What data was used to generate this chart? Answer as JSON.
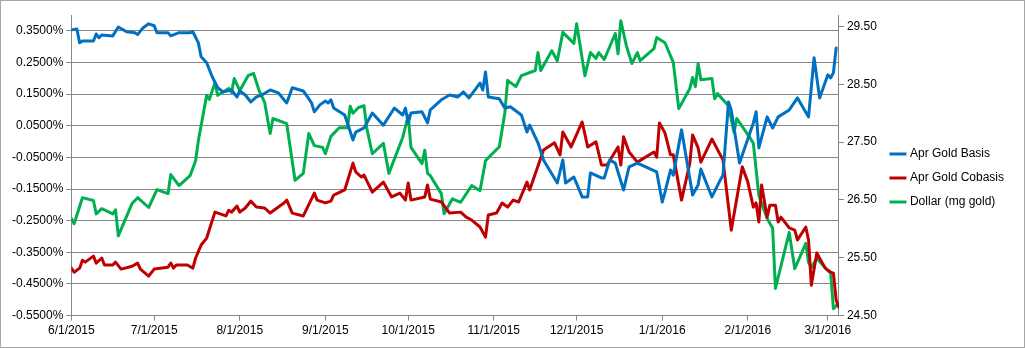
{
  "chart_data": {
    "type": "line",
    "legend": "right",
    "grid": "y",
    "marker": "none",
    "line_style": "solid",
    "xlim": [
      "2015-06-01",
      "2016-03-05"
    ],
    "xticks": [
      {
        "value": "2015-06-01",
        "label": "6/1/2015"
      },
      {
        "value": "2015-07-01",
        "label": "7/1/2015"
      },
      {
        "value": "2015-08-01",
        "label": "8/1/2015"
      },
      {
        "value": "2015-09-01",
        "label": "9/1/2015"
      },
      {
        "value": "2015-10-01",
        "label": "10/1/2015"
      },
      {
        "value": "2015-11-01",
        "label": "11/1/2015"
      },
      {
        "value": "2015-12-01",
        "label": "12/1/2015"
      },
      {
        "value": "2016-01-01",
        "label": "1/1/2016"
      },
      {
        "value": "2016-02-01",
        "label": "2/1/2016"
      },
      {
        "value": "2016-03-01",
        "label": "3/1/2016"
      }
    ],
    "ylim": [
      -0.55,
      0.4
    ],
    "yticks": [
      {
        "value": 0.35,
        "label": "0.3500%"
      },
      {
        "value": 0.25,
        "label": "0.2500%"
      },
      {
        "value": 0.15,
        "label": "0.1500%"
      },
      {
        "value": 0.05,
        "label": "0.0500%"
      },
      {
        "value": -0.05,
        "label": "-0.0500%"
      },
      {
        "value": -0.15,
        "label": "-0.1500%"
      },
      {
        "value": -0.25,
        "label": "-0.2500%"
      },
      {
        "value": -0.35,
        "label": "-0.3500%"
      },
      {
        "value": -0.45,
        "label": "-0.4500%"
      },
      {
        "value": -0.55,
        "label": "-0.5500%"
      }
    ],
    "y2lim": [
      24.5,
      29.7
    ],
    "y2ticks": [
      {
        "value": 24.5,
        "label": "24.50"
      },
      {
        "value": 25.5,
        "label": "25.50"
      },
      {
        "value": 26.5,
        "label": "26.50"
      },
      {
        "value": 27.5,
        "label": "27.50"
      },
      {
        "value": 28.5,
        "label": "28.50"
      },
      {
        "value": 29.5,
        "label": "29.50"
      }
    ],
    "series": [
      {
        "name": "Apr Gold Basis",
        "color": "#0070c0",
        "x": [
          "2015-06-01",
          "2015-06-03",
          "2015-06-04",
          "2015-06-05",
          "2015-06-09",
          "2015-06-10",
          "2015-06-11",
          "2015-06-12",
          "2015-06-16",
          "2015-06-18",
          "2015-06-21",
          "2015-06-24",
          "2015-06-25",
          "2015-06-27",
          "2015-06-29",
          "2015-07-01",
          "2015-07-02",
          "2015-07-06",
          "2015-07-07",
          "2015-07-10",
          "2015-07-14",
          "2015-07-15",
          "2015-07-17",
          "2015-07-18",
          "2015-07-20",
          "2015-07-22",
          "2015-07-24",
          "2015-07-26",
          "2015-07-29",
          "2015-07-31",
          "2015-08-01",
          "2015-08-03",
          "2015-08-05",
          "2015-08-07",
          "2015-08-09",
          "2015-08-12",
          "2015-08-15",
          "2015-08-17",
          "2015-08-18",
          "2015-08-20",
          "2015-08-24",
          "2015-08-27",
          "2015-08-28",
          "2015-08-30",
          "2015-09-01",
          "2015-09-02",
          "2015-09-03",
          "2015-09-04",
          "2015-09-08",
          "2015-09-11",
          "2015-09-12",
          "2015-09-15",
          "2015-09-18",
          "2015-09-22",
          "2015-09-26",
          "2015-09-29",
          "2015-09-30",
          "2015-10-01",
          "2015-10-02",
          "2015-10-06",
          "2015-10-08",
          "2015-10-09",
          "2015-10-13",
          "2015-10-16",
          "2015-10-19",
          "2015-10-21",
          "2015-10-23",
          "2015-10-27",
          "2015-10-28",
          "2015-10-29",
          "2015-10-30",
          "2015-11-03",
          "2015-11-05",
          "2015-11-07",
          "2015-11-11",
          "2015-11-13",
          "2015-11-14",
          "2015-11-17",
          "2015-11-19",
          "2015-11-24",
          "2015-11-26",
          "2015-11-27",
          "2015-11-30",
          "2015-12-03",
          "2015-12-05",
          "2015-12-06",
          "2015-12-10",
          "2015-12-11",
          "2015-12-13",
          "2015-12-15",
          "2015-12-18",
          "2015-12-20",
          "2015-12-23",
          "2015-12-30",
          "2016-01-01",
          "2016-01-02",
          "2016-01-04",
          "2016-01-05",
          "2016-01-08",
          "2016-01-12",
          "2016-01-14",
          "2016-01-15",
          "2016-01-19",
          "2016-01-22",
          "2016-01-23",
          "2016-01-25",
          "2016-01-26",
          "2016-01-29",
          "2016-02-03",
          "2016-02-04",
          "2016-02-05",
          "2016-02-08",
          "2016-02-10",
          "2016-02-12",
          "2016-02-16",
          "2016-02-19",
          "2016-02-23",
          "2016-02-25",
          "2016-02-27",
          "2016-03-01",
          "2016-03-02",
          "2016-03-03",
          "2016-03-04"
        ],
        "values": [
          0.353,
          0.356,
          0.312,
          0.318,
          0.318,
          0.34,
          0.328,
          0.337,
          0.334,
          0.362,
          0.347,
          0.344,
          0.338,
          0.36,
          0.372,
          0.366,
          0.344,
          0.344,
          0.334,
          0.344,
          0.344,
          0.347,
          0.312,
          0.268,
          0.249,
          0.205,
          0.17,
          0.157,
          0.163,
          0.141,
          0.16,
          0.147,
          0.125,
          0.141,
          0.147,
          0.163,
          0.154,
          0.132,
          0.122,
          0.17,
          0.16,
          0.122,
          0.094,
          0.116,
          0.128,
          0.122,
          0.132,
          0.106,
          0.084,
          0.005,
          0.03,
          0.043,
          0.09,
          0.052,
          0.106,
          0.084,
          0.106,
          0.059,
          0.09,
          0.094,
          0.059,
          0.1,
          0.132,
          0.147,
          0.141,
          0.157,
          0.138,
          0.185,
          0.163,
          0.22,
          0.141,
          0.135,
          0.106,
          0.11,
          0.084,
          0.03,
          0.052,
          -0.004,
          -0.058,
          -0.131,
          -0.058,
          -0.131,
          -0.112,
          -0.175,
          -0.175,
          -0.099,
          -0.115,
          -0.115,
          -0.058,
          -0.068,
          -0.153,
          -0.08,
          -0.068,
          -0.096,
          -0.191,
          -0.16,
          -0.09,
          -0.106,
          0.037,
          -0.169,
          -0.137,
          -0.087,
          -0.175,
          -0.122,
          -0.106,
          0.125,
          0.1,
          -0.068,
          0.059,
          0.094,
          -0.02,
          0.078,
          0.043,
          0.078,
          0.1,
          0.138,
          0.078,
          0.265,
          0.138,
          0.211,
          0.201,
          0.217,
          0.296
        ]
      },
      {
        "name": "Apr Gold Cobasis",
        "color": "#c00000",
        "x": [
          "2015-06-01",
          "2015-06-02",
          "2015-06-04",
          "2015-06-05",
          "2015-06-06",
          "2015-06-09",
          "2015-06-10",
          "2015-06-12",
          "2015-06-13",
          "2015-06-16",
          "2015-06-17",
          "2015-06-19",
          "2015-06-23",
          "2015-06-25",
          "2015-06-26",
          "2015-06-29",
          "2015-07-01",
          "2015-07-06",
          "2015-07-07",
          "2015-07-08",
          "2015-07-09",
          "2015-07-13",
          "2015-07-15",
          "2015-07-16",
          "2015-07-18",
          "2015-07-20",
          "2015-07-23",
          "2015-07-27",
          "2015-07-28",
          "2015-07-29",
          "2015-07-31",
          "2015-08-01",
          "2015-08-03",
          "2015-08-05",
          "2015-08-07",
          "2015-08-10",
          "2015-08-12",
          "2015-08-17",
          "2015-08-18",
          "2015-08-20",
          "2015-08-24",
          "2015-08-28",
          "2015-08-29",
          "2015-09-01",
          "2015-09-03",
          "2015-09-04",
          "2015-09-08",
          "2015-09-11",
          "2015-09-12",
          "2015-09-14",
          "2015-09-15",
          "2015-09-18",
          "2015-09-22",
          "2015-09-25",
          "2015-09-28",
          "2015-09-30",
          "2015-10-01",
          "2015-10-02",
          "2015-10-07",
          "2015-10-08",
          "2015-10-09",
          "2015-10-13",
          "2015-10-16",
          "2015-10-20",
          "2015-10-22",
          "2015-10-24",
          "2015-10-27",
          "2015-10-29",
          "2015-10-30",
          "2015-11-02",
          "2015-11-04",
          "2015-11-06",
          "2015-11-08",
          "2015-11-10",
          "2015-11-13",
          "2015-11-14",
          "2015-11-19",
          "2015-11-23",
          "2015-11-25",
          "2015-11-26",
          "2015-11-29",
          "2015-12-03",
          "2015-12-05",
          "2015-12-08",
          "2015-12-10",
          "2015-12-12",
          "2015-12-16",
          "2015-12-17",
          "2015-12-18",
          "2015-12-20",
          "2015-12-23",
          "2015-12-29",
          "2015-12-30",
          "2015-12-31",
          "2016-01-02",
          "2016-01-04",
          "2016-01-05",
          "2016-01-08",
          "2016-01-11",
          "2016-01-12",
          "2016-01-14",
          "2016-01-15",
          "2016-01-19",
          "2016-01-23",
          "2016-01-26",
          "2016-01-30",
          "2016-02-01",
          "2016-02-03",
          "2016-02-04",
          "2016-02-05",
          "2016-02-06",
          "2016-02-08",
          "2016-02-09",
          "2016-02-11",
          "2016-02-12",
          "2016-02-13",
          "2016-02-16",
          "2016-02-18",
          "2016-02-19",
          "2016-02-22",
          "2016-02-23",
          "2016-02-24",
          "2016-02-26",
          "2016-02-29",
          "2016-03-02",
          "2016-03-03",
          "2016-03-04",
          "2016-03-05"
        ],
        "values": [
          -0.4,
          -0.413,
          -0.4,
          -0.375,
          -0.381,
          -0.362,
          -0.384,
          -0.368,
          -0.39,
          -0.39,
          -0.381,
          -0.403,
          -0.394,
          -0.384,
          -0.403,
          -0.425,
          -0.403,
          -0.397,
          -0.384,
          -0.4,
          -0.39,
          -0.39,
          -0.4,
          -0.368,
          -0.327,
          -0.305,
          -0.223,
          -0.235,
          -0.217,
          -0.223,
          -0.204,
          -0.223,
          -0.21,
          -0.188,
          -0.207,
          -0.21,
          -0.226,
          -0.194,
          -0.185,
          -0.226,
          -0.235,
          -0.163,
          -0.185,
          -0.194,
          -0.188,
          -0.169,
          -0.153,
          -0.068,
          -0.096,
          -0.112,
          -0.106,
          -0.16,
          -0.128,
          -0.175,
          -0.163,
          -0.185,
          -0.131,
          -0.185,
          -0.175,
          -0.137,
          -0.182,
          -0.191,
          -0.226,
          -0.223,
          -0.239,
          -0.248,
          -0.27,
          -0.302,
          -0.232,
          -0.226,
          -0.194,
          -0.207,
          -0.185,
          -0.191,
          -0.128,
          -0.153,
          -0.027,
          -0.004,
          -0.042,
          0.03,
          -0.017,
          0.062,
          -0.017,
          -0.001,
          -0.074,
          -0.074,
          -0.017,
          -0.074,
          0.015,
          -0.033,
          -0.065,
          -0.033,
          -0.049,
          0.059,
          0.027,
          -0.042,
          -0.042,
          -0.185,
          -0.068,
          0.021,
          -0.02,
          -0.065,
          0.008,
          -0.058,
          -0.28,
          -0.08,
          -0.128,
          -0.207,
          -0.194,
          -0.254,
          -0.137,
          -0.239,
          -0.201,
          -0.201,
          -0.254,
          -0.239,
          -0.273,
          -0.28,
          -0.311,
          -0.27,
          -0.311,
          -0.454,
          -0.352,
          -0.4,
          -0.413,
          -0.416,
          -0.501,
          -0.524
        ]
      },
      {
        "name": "Dollar (mg gold)",
        "color": "#00b050",
        "axis": "y2",
        "x": [
          "2015-06-01",
          "2015-06-02",
          "2015-06-05",
          "2015-06-09",
          "2015-06-10",
          "2015-06-12",
          "2015-06-16",
          "2015-06-17",
          "2015-06-18",
          "2015-06-23",
          "2015-06-25",
          "2015-06-29",
          "2015-07-02",
          "2015-07-06",
          "2015-07-07",
          "2015-07-10",
          "2015-07-14",
          "2015-07-16",
          "2015-07-17",
          "2015-07-20",
          "2015-07-21",
          "2015-07-23",
          "2015-07-24",
          "2015-07-28",
          "2015-07-29",
          "2015-07-30",
          "2015-08-01",
          "2015-08-04",
          "2015-08-06",
          "2015-08-08",
          "2015-08-10",
          "2015-08-12",
          "2015-08-13",
          "2015-08-18",
          "2015-08-21",
          "2015-08-24",
          "2015-08-26",
          "2015-08-28",
          "2015-08-31",
          "2015-09-01",
          "2015-09-03",
          "2015-09-06",
          "2015-09-09",
          "2015-09-10",
          "2015-09-11",
          "2015-09-13",
          "2015-09-15",
          "2015-09-16",
          "2015-09-18",
          "2015-09-22",
          "2015-09-24",
          "2015-09-29",
          "2015-10-01",
          "2015-10-02",
          "2015-10-06",
          "2015-10-07",
          "2015-10-08",
          "2015-10-09",
          "2015-10-13",
          "2015-10-14",
          "2015-10-17",
          "2015-10-20",
          "2015-10-24",
          "2015-10-27",
          "2015-10-29",
          "2015-11-03",
          "2015-11-05",
          "2015-11-06",
          "2015-11-09",
          "2015-11-11",
          "2015-11-16",
          "2015-11-17",
          "2015-11-18",
          "2015-11-22",
          "2015-11-24",
          "2015-11-26",
          "2015-11-30",
          "2015-12-01",
          "2015-12-04",
          "2015-12-06",
          "2015-12-08",
          "2015-12-09",
          "2015-12-11",
          "2015-12-15",
          "2015-12-16",
          "2015-12-17",
          "2015-12-19",
          "2015-12-21",
          "2015-12-23",
          "2015-12-24",
          "2015-12-29",
          "2015-12-30",
          "2016-01-02",
          "2016-01-05",
          "2016-01-07",
          "2016-01-11",
          "2016-01-12",
          "2016-01-13",
          "2016-01-14",
          "2016-01-15",
          "2016-01-19",
          "2016-01-20",
          "2016-01-21",
          "2016-01-25",
          "2016-01-27",
          "2016-01-28",
          "2016-02-02",
          "2016-02-03",
          "2016-02-05",
          "2016-02-08",
          "2016-02-10",
          "2016-02-11",
          "2016-02-16",
          "2016-02-18",
          "2016-02-22",
          "2016-02-23",
          "2016-02-24",
          "2016-02-26",
          "2016-03-01",
          "2016-03-02",
          "2016-03-03",
          "2016-03-05"
        ],
        "values": [
          26.18,
          26.09,
          26.54,
          26.49,
          26.26,
          26.35,
          26.26,
          26.33,
          25.88,
          26.44,
          26.54,
          26.37,
          26.68,
          26.61,
          26.94,
          26.75,
          26.92,
          27.18,
          27.53,
          28.31,
          28.24,
          28.53,
          28.31,
          28.43,
          28.36,
          28.6,
          28.39,
          28.65,
          28.69,
          28.39,
          28.19,
          27.65,
          27.91,
          27.82,
          26.84,
          26.96,
          27.65,
          27.44,
          27.41,
          27.3,
          27.6,
          27.75,
          27.75,
          28.12,
          28.0,
          28.1,
          28.13,
          27.74,
          27.3,
          27.48,
          26.96,
          27.58,
          27.96,
          27.41,
          27.13,
          27.36,
          26.96,
          26.92,
          26.61,
          26.26,
          26.52,
          26.46,
          26.75,
          26.66,
          27.18,
          27.42,
          28.01,
          28.57,
          28.46,
          28.65,
          28.74,
          29.05,
          28.74,
          29.08,
          28.91,
          29.4,
          29.21,
          29.55,
          28.65,
          29.05,
          28.95,
          29.05,
          28.93,
          29.38,
          29.03,
          29.6,
          29.17,
          28.86,
          29.05,
          28.91,
          29.12,
          29.31,
          29.22,
          28.88,
          28.08,
          28.43,
          28.62,
          28.46,
          28.86,
          28.58,
          28.6,
          28.25,
          28.34,
          28.13,
          27.67,
          27.91,
          27.56,
          27.48,
          26.58,
          26.18,
          26.01,
          24.97,
          25.94,
          25.31,
          25.75,
          25.42,
          25.33,
          25.49,
          25.28,
          25.24,
          24.62,
          24.72
        ]
      }
    ]
  }
}
